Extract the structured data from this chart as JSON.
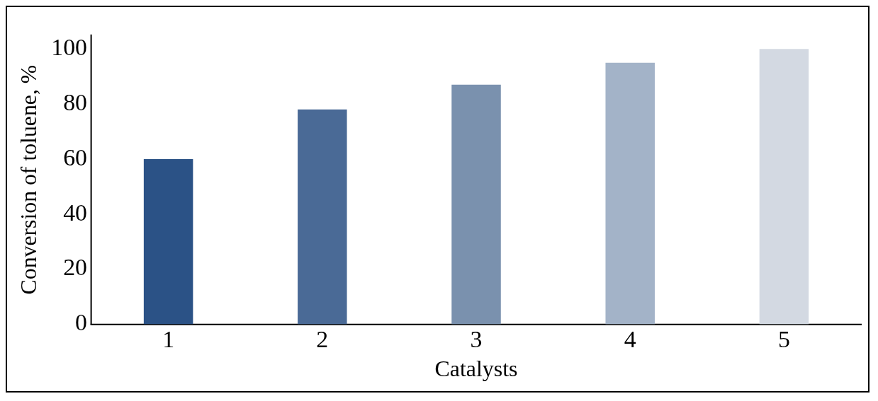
{
  "chart_data": {
    "type": "bar",
    "xlabel": "Catalysts",
    "ylabel": "Conversion of toluene, %",
    "categories": [
      "1",
      "2",
      "3",
      "4",
      "5"
    ],
    "values": [
      60,
      78,
      87,
      95,
      100
    ],
    "colors": [
      "#2b5286",
      "#4a6a96",
      "#7a91ae",
      "#a3b3c8",
      "#d3d9e2"
    ],
    "ylim": [
      0,
      105
    ],
    "yticks": [
      0,
      20,
      40,
      60,
      80,
      100
    ],
    "grid": false,
    "legend": false
  }
}
